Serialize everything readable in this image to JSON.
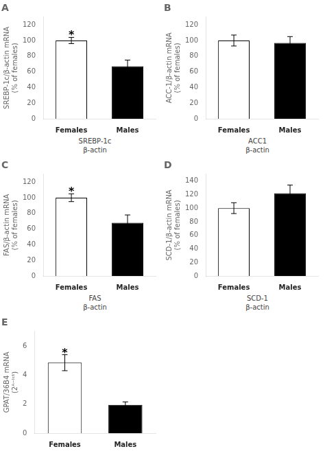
{
  "chart_data": [
    {
      "type": "bar",
      "title": "A",
      "ylabel": [
        "SREBP-1c/β-actin mRNA",
        "(% of females)"
      ],
      "categories": [
        "Females",
        "Males"
      ],
      "values": [
        100,
        67
      ],
      "errors": [
        4,
        8
      ],
      "colors": [
        "white",
        "black"
      ],
      "ylim": [
        0,
        130
      ],
      "yticks": [
        0,
        20,
        40,
        60,
        80,
        100,
        120
      ],
      "grid": false,
      "annotations": [
        {
          "text": "*",
          "category": "Females"
        },
        {
          "text": "SREBP-1c"
        },
        {
          "text": "β-actin"
        }
      ]
    },
    {
      "type": "bar",
      "title": "B",
      "ylabel": [
        "ACC-1/β-actin mRNA",
        "(% of females)"
      ],
      "categories": [
        "Females",
        "Males"
      ],
      "values": [
        100,
        97
      ],
      "errors": [
        7,
        8
      ],
      "colors": [
        "white",
        "black"
      ],
      "ylim": [
        0,
        130
      ],
      "yticks": [
        0,
        20,
        40,
        60,
        80,
        100,
        120
      ],
      "grid": false,
      "annotations": [
        {
          "text": "ACC1"
        },
        {
          "text": "β-actin"
        }
      ]
    },
    {
      "type": "bar",
      "title": "C",
      "ylabel": [
        "FAS/β-actin mRNA",
        "(% of females)"
      ],
      "categories": [
        "Females",
        "Males"
      ],
      "values": [
        100,
        68
      ],
      "errors": [
        5,
        10
      ],
      "colors": [
        "white",
        "black"
      ],
      "ylim": [
        0,
        130
      ],
      "yticks": [
        0,
        20,
        40,
        60,
        80,
        100,
        120
      ],
      "grid": false,
      "annotations": [
        {
          "text": "*",
          "category": "Females"
        },
        {
          "text": "FAS"
        },
        {
          "text": "β-actin"
        }
      ]
    },
    {
      "type": "bar",
      "title": "D",
      "ylabel": [
        "SCD-1/β-actin mRNA",
        "(% of females)"
      ],
      "categories": [
        "Females",
        "Males"
      ],
      "values": [
        100,
        122
      ],
      "errors": [
        8,
        12
      ],
      "colors": [
        "white",
        "black"
      ],
      "ylim": [
        0,
        150
      ],
      "yticks": [
        0,
        20,
        40,
        60,
        80,
        100,
        120,
        140
      ],
      "grid": false,
      "annotations": [
        {
          "text": "SCD-1"
        },
        {
          "text": "β-actin"
        }
      ]
    },
    {
      "type": "bar",
      "title": "E",
      "ylabel": [
        "GPAT/36B4 mRNA",
        "(2ᴬ⁻ᴵᶜᵗ)"
      ],
      "categories": [
        "Females",
        "Males"
      ],
      "values": [
        4.85,
        1.95
      ],
      "errors": [
        0.55,
        0.2
      ],
      "colors": [
        "white",
        "black"
      ],
      "ylim": [
        0,
        7
      ],
      "yticks": [
        0,
        2,
        4,
        6
      ],
      "grid": false,
      "annotations": [
        {
          "text": "*",
          "category": "Females"
        }
      ]
    }
  ]
}
